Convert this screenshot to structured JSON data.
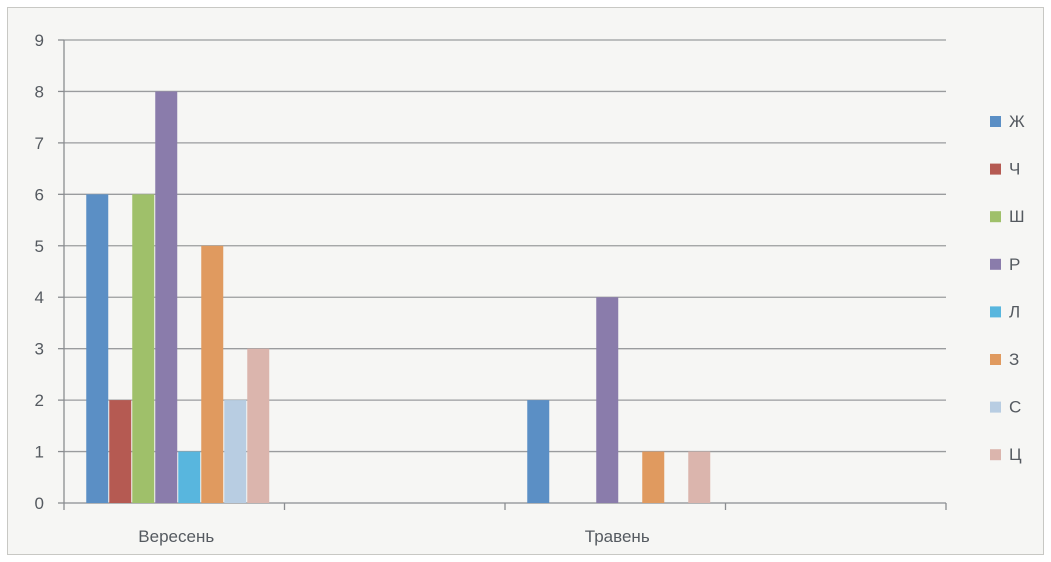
{
  "chart_data": {
    "type": "bar",
    "title": "",
    "xlabel": "",
    "ylabel": "",
    "categories": [
      "Вересень",
      "Травень"
    ],
    "ylim": [
      0,
      9
    ],
    "yticks": [
      0,
      1,
      2,
      3,
      4,
      5,
      6,
      7,
      8,
      9
    ],
    "grid": true,
    "legend_position": "right",
    "series": [
      {
        "name": "Ж",
        "color": "#5b8fc5",
        "values": [
          6,
          2
        ]
      },
      {
        "name": "Ч",
        "color": "#b55a52",
        "values": [
          2,
          0
        ]
      },
      {
        "name": "Ш",
        "color": "#9fc06a",
        "values": [
          6,
          0
        ]
      },
      {
        "name": "Р",
        "color": "#8a7cab",
        "values": [
          8,
          4
        ]
      },
      {
        "name": "Л",
        "color": "#58b6de",
        "values": [
          1,
          0
        ]
      },
      {
        "name": "З",
        "color": "#e09a5f",
        "values": [
          5,
          1
        ]
      },
      {
        "name": "С",
        "color": "#b8cde2",
        "values": [
          2,
          0
        ]
      },
      {
        "name": "Ц",
        "color": "#dbb5ad",
        "values": [
          3,
          1
        ]
      }
    ]
  }
}
